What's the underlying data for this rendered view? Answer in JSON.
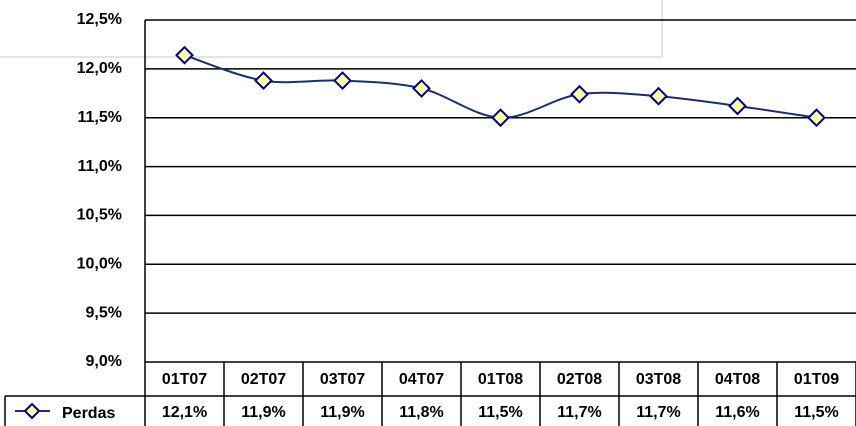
{
  "chart_data": {
    "type": "line",
    "categories": [
      "01T07",
      "02T07",
      "03T07",
      "04T07",
      "01T08",
      "02T08",
      "03T08",
      "04T08",
      "01T09"
    ],
    "series": [
      {
        "name": "Perdas",
        "color": "#1a2f6b",
        "values": [
          12.14,
          11.88,
          11.88,
          11.8,
          11.5,
          11.74,
          11.72,
          11.62,
          11.5
        ],
        "value_labels": [
          "12,1%",
          "11,9%",
          "11,9%",
          "11,8%",
          "11,5%",
          "11,7%",
          "11,7%",
          "11,6%",
          "11,5%"
        ]
      }
    ],
    "ylim": [
      9.0,
      12.5
    ],
    "yticks": [
      {
        "value": 9.0,
        "label": "9,0%"
      },
      {
        "value": 9.5,
        "label": "9,5%"
      },
      {
        "value": 10.0,
        "label": "10,0%"
      },
      {
        "value": 10.5,
        "label": "10,5%"
      },
      {
        "value": 11.0,
        "label": "11,0%"
      },
      {
        "value": 11.5,
        "label": "11,5%"
      },
      {
        "value": 12.0,
        "label": "12,0%"
      },
      {
        "value": 12.5,
        "label": "12,5%"
      }
    ],
    "grid": true
  }
}
